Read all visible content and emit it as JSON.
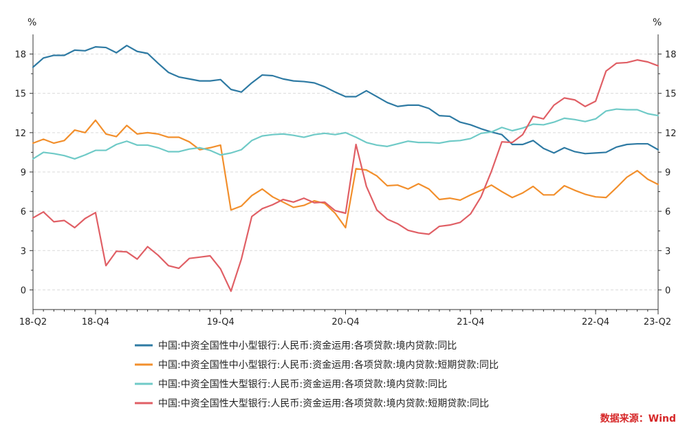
{
  "chart_data": {
    "type": "line",
    "y_unit_left": "%",
    "y_unit_right": "%",
    "ylim": [
      -1.5,
      19.5
    ],
    "yticks": [
      0,
      3,
      6,
      9,
      12,
      15,
      18
    ],
    "x_tick_labels": [
      "18-Q2",
      "18-Q4",
      "19-Q4",
      "20-Q4",
      "21-Q4",
      "22-Q4",
      "23-Q2"
    ],
    "x_tick_positions": [
      0,
      6,
      18,
      30,
      42,
      54,
      60
    ],
    "x_range": [
      0,
      60
    ],
    "grid": true,
    "legend_position": "bottom",
    "series": [
      {
        "name": "中国:中资全国性中小型银行:人民币:资金运用:各项贷款:境内贷款:同比",
        "color": "#2e7aa3",
        "values": [
          17.0,
          17.7,
          17.9,
          17.9,
          18.3,
          18.25,
          18.55,
          18.5,
          18.1,
          18.65,
          18.2,
          18.05,
          17.3,
          16.6,
          16.25,
          16.1,
          15.95,
          15.95,
          16.05,
          15.3,
          15.1,
          15.8,
          16.4,
          16.35,
          16.1,
          15.95,
          15.9,
          15.8,
          15.5,
          15.1,
          14.75,
          14.75,
          15.2,
          14.75,
          14.3,
          14.0,
          14.1,
          14.1,
          13.85,
          13.3,
          13.25,
          12.8,
          12.6,
          12.3,
          12.05,
          11.85,
          11.1,
          11.1,
          11.4,
          10.8,
          10.45,
          10.85,
          10.55,
          10.4,
          10.45,
          10.5,
          10.9,
          11.1,
          11.15,
          11.15,
          10.7
        ]
      },
      {
        "name": "中国:中资全国性中小型银行:人民币:资金运用:各项贷款:境内贷款:短期贷款:同比",
        "color": "#f28f2c",
        "values": [
          11.2,
          11.5,
          11.2,
          11.4,
          12.2,
          12.0,
          12.95,
          11.9,
          11.7,
          12.55,
          11.9,
          12.0,
          11.9,
          11.65,
          11.65,
          11.3,
          10.7,
          10.85,
          11.05,
          6.1,
          6.4,
          7.2,
          7.7,
          7.1,
          6.7,
          6.3,
          6.45,
          6.8,
          6.6,
          5.85,
          4.75,
          9.25,
          9.15,
          8.7,
          7.95,
          8.0,
          7.7,
          8.1,
          7.7,
          6.9,
          7.0,
          6.85,
          7.25,
          7.6,
          8.0,
          7.5,
          7.05,
          7.4,
          7.9,
          7.25,
          7.25,
          7.95,
          7.6,
          7.3,
          7.1,
          7.05,
          7.8,
          8.6,
          9.1,
          8.45,
          8.05
        ]
      },
      {
        "name": "中国:中资全国性大型银行:人民币:资金运用:各项贷款:境内贷款:同比",
        "color": "#6fcac7",
        "values": [
          10.0,
          10.5,
          10.4,
          10.25,
          10.0,
          10.3,
          10.65,
          10.65,
          11.1,
          11.35,
          11.05,
          11.05,
          10.85,
          10.55,
          10.55,
          10.75,
          10.85,
          10.65,
          10.3,
          10.45,
          10.7,
          11.4,
          11.75,
          11.85,
          11.9,
          11.8,
          11.65,
          11.85,
          11.95,
          11.85,
          12.0,
          11.65,
          11.25,
          11.05,
          10.95,
          11.15,
          11.35,
          11.25,
          11.25,
          11.2,
          11.35,
          11.4,
          11.55,
          11.95,
          12.05,
          12.4,
          12.15,
          12.35,
          12.65,
          12.6,
          12.8,
          13.1,
          13.0,
          12.85,
          13.05,
          13.65,
          13.8,
          13.75,
          13.75,
          13.45,
          13.3
        ]
      },
      {
        "name": "中国:中资全国性大型银行:人民币:资金运用:各项贷款:境内贷款:短期贷款:同比",
        "color": "#e05f65",
        "values": [
          5.5,
          5.95,
          5.2,
          5.3,
          4.75,
          5.45,
          5.9,
          1.85,
          2.95,
          2.9,
          2.35,
          3.3,
          2.65,
          1.85,
          1.65,
          2.4,
          2.5,
          2.6,
          1.6,
          -0.1,
          2.35,
          5.6,
          6.2,
          6.5,
          6.9,
          6.7,
          7.0,
          6.65,
          6.7,
          6.05,
          5.85,
          11.1,
          7.9,
          6.1,
          5.4,
          5.05,
          4.55,
          4.35,
          4.25,
          4.85,
          4.95,
          5.15,
          5.8,
          7.1,
          9.05,
          11.3,
          11.25,
          11.85,
          13.25,
          13.05,
          14.1,
          14.65,
          14.5,
          14.0,
          14.4,
          16.7,
          17.3,
          17.35,
          17.55,
          17.4,
          17.1
        ]
      }
    ],
    "source": "数据来源：Wind"
  }
}
